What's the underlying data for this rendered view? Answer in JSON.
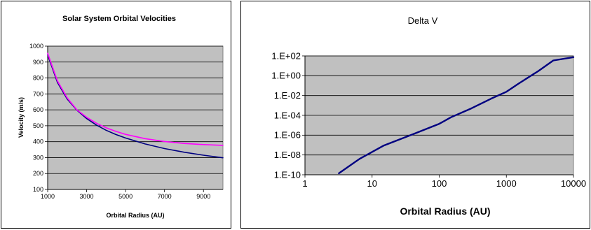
{
  "chart_data": [
    {
      "type": "line",
      "title": "Solar System Orbital Velocities",
      "xlabel": "Orbital Radius (AU)",
      "ylabel": "Velocity (m/s)",
      "xlim": [
        1000,
        10000
      ],
      "ylim": [
        100,
        1000
      ],
      "x_ticks": [
        1000,
        3000,
        5000,
        7000,
        9000
      ],
      "y_ticks": [
        100,
        200,
        300,
        400,
        500,
        600,
        700,
        800,
        900,
        1000
      ],
      "x_tick_labels": [
        "1000",
        "3000",
        "5000",
        "7000",
        "9000"
      ],
      "y_tick_labels": [
        "100",
        "200",
        "300",
        "400",
        "500",
        "600",
        "700",
        "800",
        "900",
        "1000"
      ],
      "grid": "horizontal",
      "legend": "none",
      "plot_background": "#c0c0c0",
      "series": [
        {
          "color": "#000080",
          "x": [
            1000,
            1500,
            2000,
            2500,
            3000,
            3500,
            4000,
            4500,
            5000,
            6000,
            7000,
            8000,
            9000,
            10000
          ],
          "y": [
            945,
            772,
            668,
            598,
            545,
            505,
            472,
            445,
            423,
            386,
            357,
            334,
            315,
            299
          ]
        },
        {
          "color": "#ff00ff",
          "x": [
            1000,
            1500,
            2000,
            2500,
            3000,
            3500,
            4000,
            4500,
            5000,
            6000,
            7000,
            8000,
            9000,
            10000
          ],
          "y": [
            955,
            782,
            675,
            600,
            553,
            516,
            487,
            465,
            446,
            419,
            401,
            389,
            382,
            377
          ]
        }
      ]
    },
    {
      "type": "line",
      "title": "Delta V",
      "xlabel": "Orbital Radius (AU)",
      "ylabel": "",
      "xscale": "log",
      "yscale": "log",
      "xlim": [
        1,
        10000
      ],
      "ylim": [
        1e-10,
        100
      ],
      "x_ticks": [
        1,
        10,
        100,
        1000,
        10000
      ],
      "y_ticks": [
        1e-10,
        1e-08,
        1e-06,
        0.0001,
        0.01,
        1,
        100
      ],
      "x_tick_labels": [
        "1",
        "10",
        "100",
        "1000",
        "10000"
      ],
      "y_tick_labels": [
        "1.E-10",
        "1.E-08",
        "1.E-06",
        "1.E-04",
        "1.E-02",
        "1.E+00",
        "1.E+02"
      ],
      "grid": "horizontal",
      "legend": "none",
      "plot_background": "#c0c0c0",
      "series": [
        {
          "color": "#000080",
          "x": [
            3.2,
            6.5,
            15,
            40,
            100,
            150,
            300,
            600,
            1000,
            1500,
            3000,
            5000,
            10000
          ],
          "y": [
            1.4e-10,
            4e-09,
            9e-08,
            1.2e-06,
            1.4e-05,
            6.5e-05,
            0.0005,
            0.005,
            0.024,
            0.15,
            3,
            35.0,
            75.0
          ]
        }
      ]
    }
  ]
}
